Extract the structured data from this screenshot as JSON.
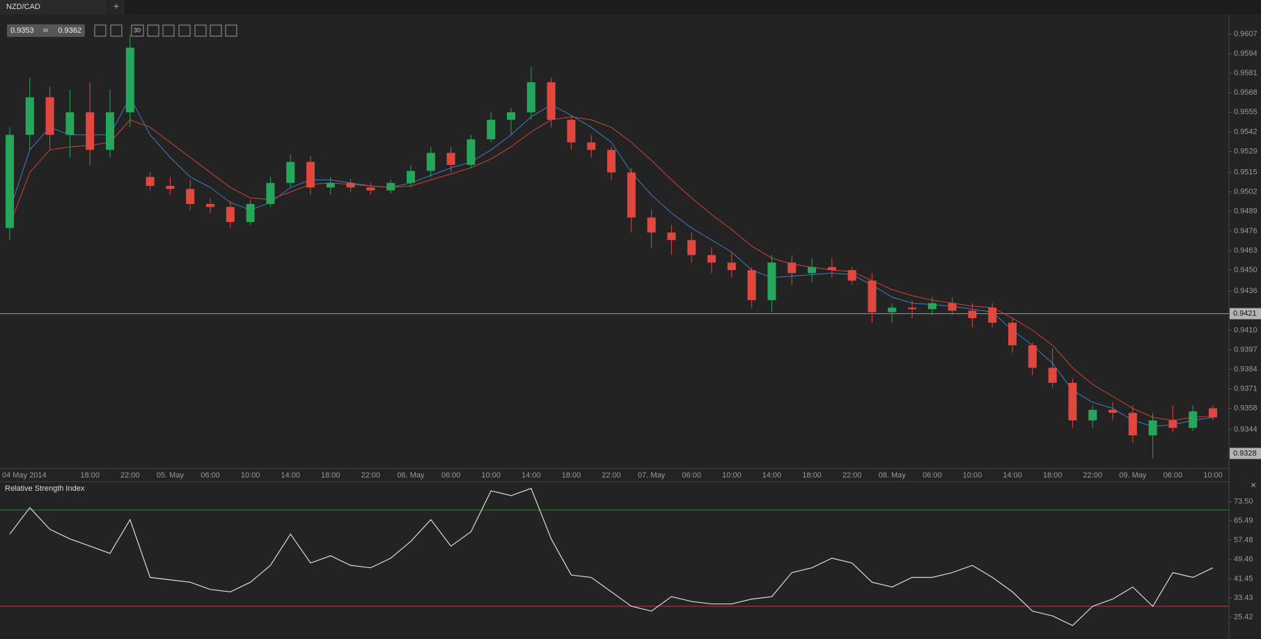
{
  "tabs": {
    "active": "NZD/CAD",
    "add": "+"
  },
  "toolbar": {
    "bid": "0.9353",
    "ask": "0.9362",
    "timeframe": "30"
  },
  "panel_close": "×",
  "chart_data": [
    {
      "type": "candlestick",
      "categories": [
        "04 May 2014",
        null,
        null,
        null,
        "18:00",
        null,
        "22:00",
        null,
        "05. May",
        null,
        "06:00",
        null,
        "10:00",
        null,
        "14:00",
        null,
        "18:00",
        null,
        "22:00",
        null,
        "06. May",
        null,
        "06:00",
        null,
        "10:00",
        null,
        "14:00",
        null,
        "18:00",
        null,
        "22:00",
        null,
        "07. May",
        null,
        "06:00",
        null,
        "10:00",
        null,
        "14:00",
        null,
        "18:00",
        null,
        "22:00",
        null,
        "08. May",
        null,
        "06:00",
        null,
        "10:00",
        null,
        "14:00",
        null,
        "18:00",
        null,
        "22:00",
        null,
        "09. May",
        null,
        "06:00",
        null,
        "10:00"
      ],
      "open": [
        0.9478,
        0.954,
        0.9565,
        0.954,
        0.9555,
        0.953,
        0.9555,
        0.9512,
        0.9506,
        0.9504,
        0.9494,
        0.9492,
        0.9482,
        0.9494,
        0.9508,
        0.9522,
        0.9505,
        0.9508,
        0.9505,
        0.9503,
        0.9508,
        0.9516,
        0.9528,
        0.952,
        0.9537,
        0.955,
        0.9555,
        0.9575,
        0.955,
        0.9535,
        0.953,
        0.9515,
        0.9485,
        0.9475,
        0.947,
        0.946,
        0.9455,
        0.945,
        0.943,
        0.9455,
        0.9448,
        0.9452,
        0.945,
        0.9443,
        0.9422,
        0.9425,
        0.9424,
        0.9428,
        0.9423,
        0.9425,
        0.9415,
        0.94,
        0.9385,
        0.9375,
        0.935,
        0.9357,
        0.9355,
        0.934,
        0.935,
        0.9345,
        0.9358
      ],
      "high": [
        0.9545,
        0.9578,
        0.9572,
        0.957,
        0.9575,
        0.957,
        0.9607,
        0.9515,
        0.9512,
        0.951,
        0.9498,
        0.9496,
        0.9497,
        0.9512,
        0.9527,
        0.9526,
        0.9512,
        0.9511,
        0.9508,
        0.951,
        0.952,
        0.9532,
        0.9532,
        0.954,
        0.9555,
        0.9558,
        0.9585,
        0.9578,
        0.9552,
        0.954,
        0.9532,
        0.9518,
        0.949,
        0.948,
        0.9475,
        0.9465,
        0.9462,
        0.9452,
        0.946,
        0.946,
        0.9458,
        0.9458,
        0.9452,
        0.9448,
        0.9428,
        0.943,
        0.9432,
        0.9432,
        0.9428,
        0.9428,
        0.9418,
        0.9402,
        0.9398,
        0.9378,
        0.936,
        0.9362,
        0.936,
        0.9355,
        0.936,
        0.936,
        0.936
      ],
      "low": [
        0.947,
        0.953,
        0.953,
        0.9525,
        0.952,
        0.9525,
        0.9545,
        0.9503,
        0.95,
        0.949,
        0.9488,
        0.9478,
        0.948,
        0.9492,
        0.9505,
        0.95,
        0.95,
        0.9502,
        0.95,
        0.9501,
        0.9505,
        0.9512,
        0.9515,
        0.9518,
        0.9535,
        0.954,
        0.955,
        0.9545,
        0.953,
        0.9525,
        0.951,
        0.9475,
        0.9465,
        0.946,
        0.9455,
        0.9448,
        0.9445,
        0.9425,
        0.9422,
        0.944,
        0.9442,
        0.9445,
        0.944,
        0.9415,
        0.9415,
        0.9418,
        0.942,
        0.942,
        0.9412,
        0.9412,
        0.9395,
        0.938,
        0.9372,
        0.9345,
        0.9345,
        0.935,
        0.9335,
        0.9325,
        0.9342,
        0.9343,
        0.935
      ],
      "close": [
        0.954,
        0.9565,
        0.954,
        0.9555,
        0.953,
        0.9555,
        0.9598,
        0.9506,
        0.9504,
        0.9494,
        0.9492,
        0.9482,
        0.9494,
        0.9508,
        0.9522,
        0.9505,
        0.9508,
        0.9505,
        0.9503,
        0.9508,
        0.9516,
        0.9528,
        0.952,
        0.9537,
        0.955,
        0.9555,
        0.9575,
        0.955,
        0.9535,
        0.953,
        0.9515,
        0.9485,
        0.9475,
        0.947,
        0.946,
        0.9455,
        0.945,
        0.943,
        0.9455,
        0.9448,
        0.9452,
        0.945,
        0.9443,
        0.9422,
        0.9425,
        0.9424,
        0.9428,
        0.9423,
        0.9418,
        0.9415,
        0.94,
        0.9385,
        0.9375,
        0.935,
        0.9357,
        0.9355,
        0.934,
        0.935,
        0.9345,
        0.9356,
        0.9352
      ],
      "up_color": "#26a65b",
      "down_color": "#e0483f",
      "series": [
        {
          "color": "#3f7fc0",
          "values": [
            0.949,
            0.953,
            0.9545,
            0.954,
            0.954,
            0.954,
            0.9565,
            0.954,
            0.9525,
            0.9512,
            0.9505,
            0.9495,
            0.949,
            0.9495,
            0.9505,
            0.951,
            0.951,
            0.9508,
            0.9506,
            0.9505,
            0.9508,
            0.9513,
            0.9518,
            0.9522,
            0.953,
            0.954,
            0.9552,
            0.956,
            0.9553,
            0.9545,
            0.9535,
            0.9515,
            0.95,
            0.9488,
            0.9478,
            0.947,
            0.9462,
            0.945,
            0.9445,
            0.9446,
            0.9447,
            0.9448,
            0.9447,
            0.944,
            0.9432,
            0.9428,
            0.9427,
            0.9426,
            0.9424,
            0.9422,
            0.941,
            0.94,
            0.9388,
            0.937,
            0.9362,
            0.9358,
            0.935,
            0.9346,
            0.9347,
            0.935,
            0.9352
          ]
        },
        {
          "color": "#d0443a",
          "values": [
            0.948,
            0.9515,
            0.953,
            0.9532,
            0.9533,
            0.9535,
            0.955,
            0.9545,
            0.9535,
            0.9525,
            0.9515,
            0.9505,
            0.9498,
            0.9497,
            0.9502,
            0.9507,
            0.9508,
            0.9507,
            0.9506,
            0.9505,
            0.9506,
            0.951,
            0.9514,
            0.9518,
            0.9524,
            0.9532,
            0.9542,
            0.955,
            0.9552,
            0.955,
            0.9545,
            0.9535,
            0.9523,
            0.951,
            0.9498,
            0.9487,
            0.9477,
            0.9466,
            0.9458,
            0.9454,
            0.9452,
            0.945,
            0.9449,
            0.9443,
            0.9437,
            0.9433,
            0.943,
            0.9428,
            0.9426,
            0.9425,
            0.9418,
            0.941,
            0.94,
            0.9385,
            0.9374,
            0.9366,
            0.9358,
            0.9352,
            0.935,
            0.9352,
            0.9353
          ]
        }
      ],
      "ylim": [
        0.9318,
        0.962
      ],
      "yticks": [
        0.9607,
        0.9594,
        0.9581,
        0.9568,
        0.9555,
        0.9542,
        0.9529,
        0.9515,
        0.9502,
        0.9489,
        0.9476,
        0.9463,
        {
          "value": 0.945,
          "label": "0.9450"
        },
        0.9436,
        {
          "value": 0.941,
          "label": "0.9410"
        },
        0.9397,
        0.9384,
        0.9371,
        0.9358,
        0.9344
      ],
      "current_price": 0.9421,
      "price_marker": 0.9328
    },
    {
      "type": "line",
      "title": "Relative Strength Index",
      "color": "#dddddd",
      "values": [
        60,
        71,
        62,
        58,
        55,
        52,
        66,
        42,
        41,
        40,
        37,
        36,
        40,
        47,
        60,
        48,
        51,
        47,
        46,
        50,
        57,
        66,
        55,
        61,
        78,
        76,
        79,
        58,
        43,
        42,
        36,
        30,
        28,
        34,
        32,
        31,
        31,
        33,
        34,
        44,
        46,
        50,
        48,
        40,
        38,
        42,
        42,
        44,
        47,
        42,
        36,
        28,
        26,
        22,
        30,
        33,
        38,
        30,
        44,
        42,
        46
      ],
      "ylim": [
        16.4,
        81.5
      ],
      "yticks": [
        {
          "value": 73.5,
          "label": "73.50"
        },
        65.49,
        57.48,
        49.46,
        41.45,
        33.43,
        25.42
      ],
      "levels": [
        {
          "value": 70,
          "color": "#3d7a3d"
        },
        {
          "value": 30,
          "color": "#c0392b"
        }
      ]
    }
  ]
}
